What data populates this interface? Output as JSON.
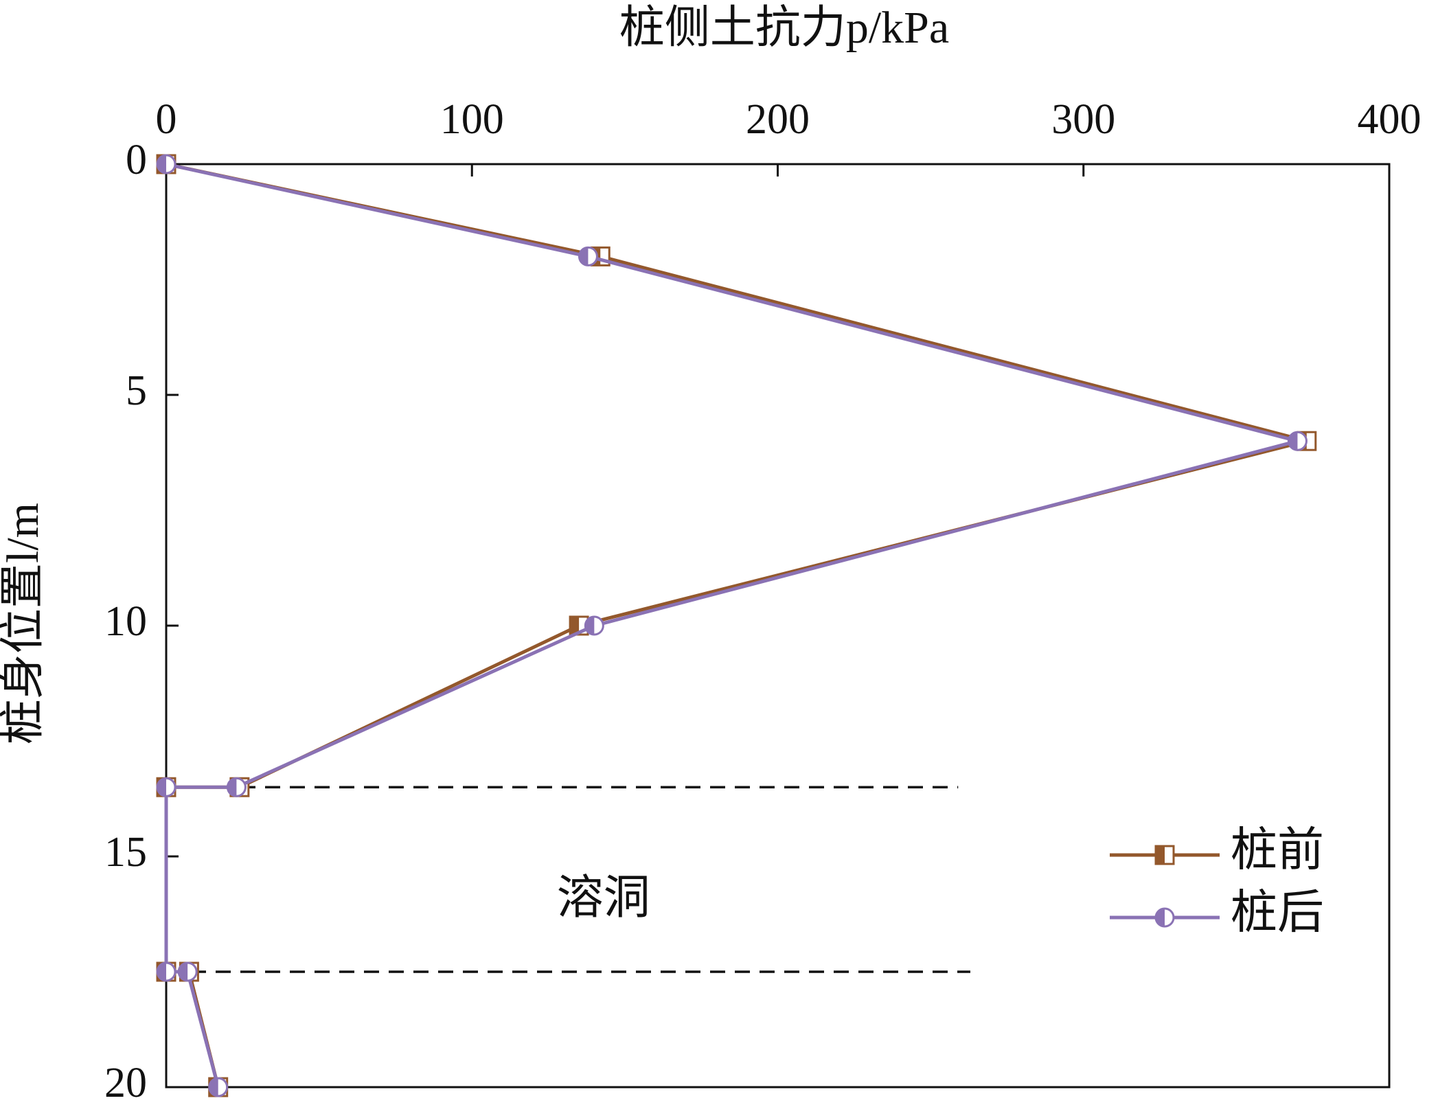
{
  "chart_data": {
    "type": "line",
    "xlabel": "桩侧土抗力p/kPa",
    "ylabel": "桩身位置l/m",
    "xlim": [
      0,
      400
    ],
    "xticks": [
      0,
      100,
      200,
      300,
      400
    ],
    "ylim": [
      0,
      20
    ],
    "yticks": [
      0,
      5,
      10,
      15,
      20
    ],
    "y_inverted": true,
    "legend": "lower right",
    "series": [
      {
        "name": "桩前",
        "color": "#93582c",
        "marker": "square",
        "x": [
          0,
          142,
          373,
          135,
          24,
          0,
          0,
          7.5,
          17
        ],
        "values": [
          0,
          2,
          6,
          10,
          13.5,
          13.5,
          17.5,
          17.5,
          20
        ]
      },
      {
        "name": "桩后",
        "color": "#8a72b4",
        "marker": "circle",
        "x": [
          0,
          138,
          370,
          140,
          23,
          0,
          0,
          7,
          17
        ],
        "values": [
          0,
          2,
          6,
          10,
          13.5,
          13.5,
          17.5,
          17.5,
          20
        ]
      }
    ],
    "cavity_lines": [
      {
        "y": 13.5,
        "xmax": 259
      },
      {
        "y": 17.5,
        "xmax": 263
      }
    ],
    "annotation": {
      "text": "溶洞",
      "x": 143,
      "y": 16
    }
  }
}
